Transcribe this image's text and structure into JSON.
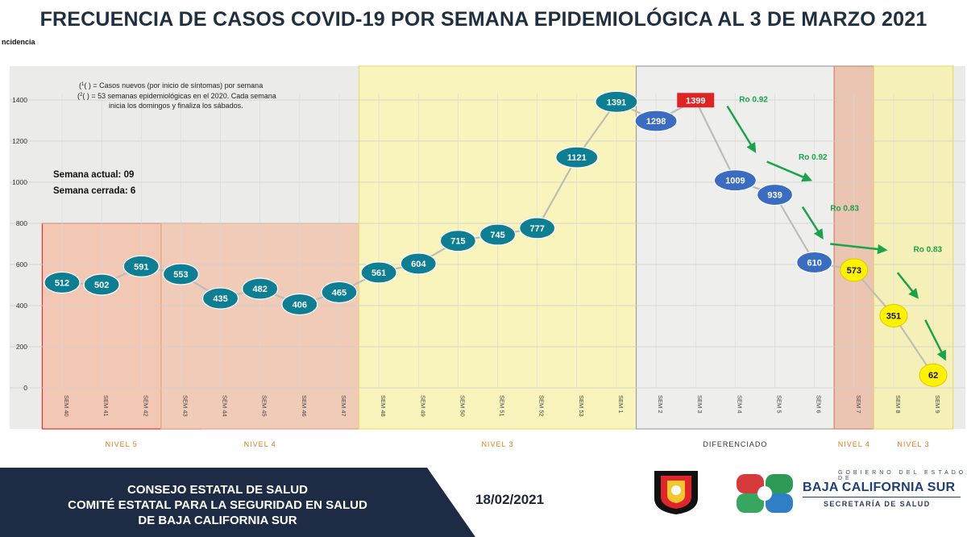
{
  "title": "FRECUENCIA DE CASOS COVID-19 POR SEMANA EPIDEMIOLÓGICA AL 3 DE MARZO 2021",
  "ylabel_fragment": "ncidencia",
  "notes": {
    "line1": "( ) = Casos nuevos (por inicio de síntomas) por semana",
    "line2": "( ) = 53 semanas epidemiológicas en el 2020. Cada semana",
    "line3": "inicia los domingos y finaliza los sábados.",
    "sup1": "1",
    "sup2": "2"
  },
  "semana": {
    "actual": "Semana actual: 09",
    "cerrada": "Semana cerrada: 6"
  },
  "chart_data": {
    "type": "line",
    "categories": [
      "SEM 40",
      "SEM 41",
      "SEM 42",
      "SEM 43",
      "SEM 44",
      "SEM 45",
      "SEM 46",
      "SEM 47",
      "SEM 48",
      "SEM 49",
      "SEM 50",
      "SEM 51",
      "SEM 52",
      "SEM 53",
      "SEM 1",
      "SEM 2",
      "SEM 3",
      "SEM 4",
      "SEM 5",
      "SEM 6",
      "SEM 7",
      "SEM 8",
      "SEM 9"
    ],
    "values": [
      512,
      502,
      591,
      553,
      435,
      482,
      406,
      465,
      561,
      604,
      715,
      745,
      777,
      1121,
      1391,
      1298,
      1399,
      1009,
      939,
      610,
      573,
      351,
      62
    ],
    "value_labels": [
      "512",
      "502",
      "591",
      "553",
      "435",
      "482",
      "406",
      "465",
      "561",
      "604",
      "715",
      "745",
      "777",
      "1121",
      "1391",
      "1298",
      "1399",
      "1009",
      "939",
      "610",
      "573",
      "351",
      "62"
    ],
    "ylim": [
      0,
      1500
    ],
    "yticks": [
      0,
      200,
      400,
      600,
      800,
      1000,
      1200,
      1400
    ],
    "ytick_labels": [
      "0",
      "200",
      "400",
      "600",
      "800",
      "1000",
      "1200",
      "1400"
    ],
    "zones": [
      {
        "label": "NIVEL 5",
        "start": 0,
        "end": 3,
        "color": "#f2c8b4",
        "border": "#e03030",
        "text_color": "#d8801e"
      },
      {
        "label": "NIVEL 4",
        "start": 3,
        "end": 7,
        "color": "#f0cbb8",
        "border": "#e8a080",
        "text_color": "#d8801e"
      },
      {
        "label": "NIVEL 3",
        "start": 8,
        "end": 14,
        "color": "#f8f4bc",
        "border": "#e8e070",
        "text_color": "#d8801e"
      },
      {
        "label": "DIFERENCIADO",
        "start": 15,
        "end": 19,
        "color": "#eeeeec",
        "border": "#a0a0a0",
        "text_color": "#333333"
      },
      {
        "label": "NIVEL 4",
        "start": 20,
        "end": 20,
        "color": "#ecc4b2",
        "border": "#d08870",
        "text_color": "#d8801e"
      },
      {
        "label": "NIVEL 3",
        "start": 21,
        "end": 22,
        "color": "#f4f0b8",
        "border": "#e6de70",
        "text_color": "#d8801e"
      }
    ],
    "marker_colors": {
      "teal": "#0e7f93",
      "blue": "#3a6dc2",
      "red": "#e02424",
      "yellow": "#fff200"
    },
    "ro_labels": [
      {
        "text": "Ro 0.92",
        "x_index": 17.1,
        "y_value": 1390
      },
      {
        "text": "Ro 0.92",
        "x_index": 18.6,
        "y_value": 1110
      },
      {
        "text": "Ro 0.83",
        "x_index": 19.4,
        "y_value": 860
      },
      {
        "text": "Ro 0.83",
        "x_index": 21.5,
        "y_value": 660
      }
    ],
    "ro_color": "#1aa34a"
  },
  "footer": {
    "line1": "CONSEJO ESTATAL DE SALUD",
    "line2": "COMITÉ ESTATAL PARA LA SEGURIDAD EN SALUD",
    "line3": "DE BAJA CALIFORNIA SUR",
    "date": "18/02/2021",
    "gov_top": "GOBIERNO DEL ESTADO DE",
    "gov_state": "BAJA CALIFORNIA SUR",
    "gov_sec": "SECRETARÍA DE SALUD"
  }
}
